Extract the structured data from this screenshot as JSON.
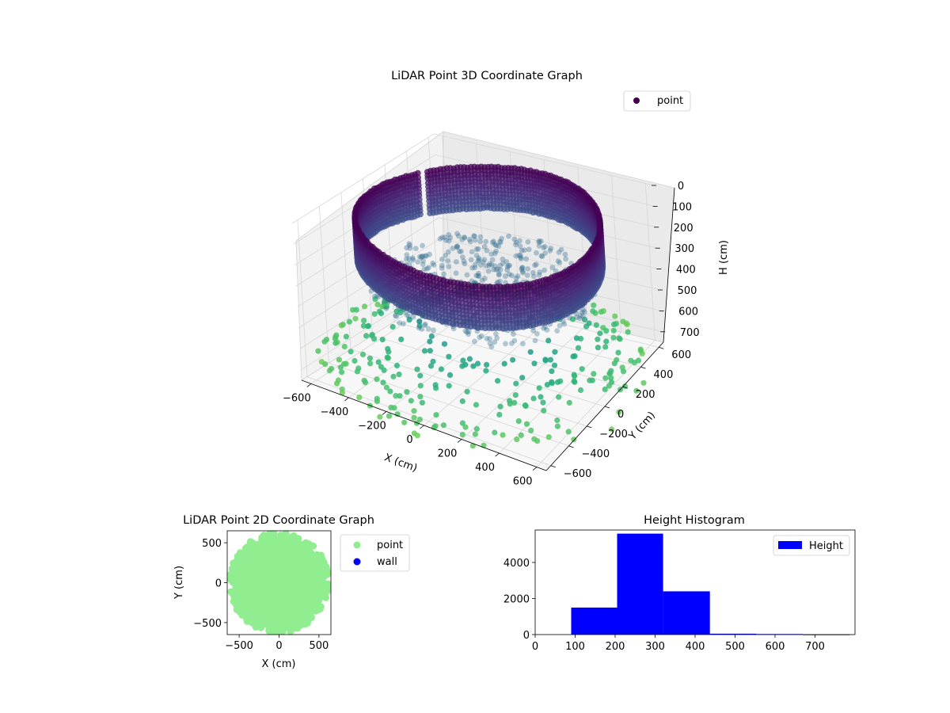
{
  "chart_data": [
    {
      "type": "scatter",
      "title": "LiDAR Point 3D Coordinate Graph",
      "projection": "3d",
      "xlabel": "X (cm)",
      "ylabel": "Y (cm)",
      "zlabel": "H (cm)",
      "xlim": [
        -650,
        650
      ],
      "ylim": [
        -650,
        650
      ],
      "zlim": [
        0,
        750
      ],
      "z_inverted": true,
      "x_ticks": [
        "-600",
        "-400",
        "-200",
        "0",
        "200",
        "400",
        "600"
      ],
      "y_ticks": [
        "-600",
        "-400",
        "-200",
        "0",
        "200",
        "400",
        "600"
      ],
      "z_ticks": [
        "0",
        "100",
        "200",
        "300",
        "400",
        "500",
        "600",
        "700"
      ],
      "grid": true,
      "colormap": "viridis",
      "legend": {
        "placement": "top-right",
        "entries": [
          {
            "label": "point",
            "color": "#440154"
          }
        ]
      },
      "series": [
        {
          "name": "point",
          "wall_radius": 600,
          "wall_height_range": [
            50,
            250
          ],
          "floor_height": 350,
          "scatter_height_range": [
            400,
            750
          ]
        }
      ]
    },
    {
      "type": "scatter",
      "title": "LiDAR Point 2D Coordinate Graph",
      "xlabel": "X (cm)",
      "ylabel": "Y (cm)",
      "xlim": [
        -650,
        650
      ],
      "ylim": [
        -650,
        650
      ],
      "x_ticks": [
        "−500",
        "0",
        "500"
      ],
      "y_ticks": [
        "500",
        "0",
        "−500"
      ],
      "legend": {
        "placement": "outside-right",
        "entries": [
          {
            "label": "point",
            "color": "#90ee90"
          },
          {
            "label": "wall",
            "color": "#0000ff"
          }
        ]
      },
      "series": [
        {
          "name": "point",
          "color": "#90ee90",
          "shape": "disk",
          "radius": 590
        },
        {
          "name": "wall",
          "color": "#0000ff",
          "values": []
        }
      ]
    },
    {
      "type": "bar",
      "title": "Height Histogram",
      "xlim": [
        0,
        800
      ],
      "ylim": [
        0,
        5800
      ],
      "x_ticks": [
        "0",
        "100",
        "200",
        "300",
        "400",
        "500",
        "600",
        "700"
      ],
      "y_ticks": [
        "0",
        "2000",
        "4000"
      ],
      "legend": {
        "placement": "top-right",
        "entries": [
          {
            "label": "Height",
            "color": "#0000ff"
          }
        ]
      },
      "bins": [
        {
          "start": 90,
          "end": 205,
          "count": 1500
        },
        {
          "start": 205,
          "end": 320,
          "count": 5600
        },
        {
          "start": 320,
          "end": 437,
          "count": 2400
        },
        {
          "start": 437,
          "end": 553,
          "count": 50
        },
        {
          "start": 553,
          "end": 670,
          "count": 30
        },
        {
          "start": 670,
          "end": 787,
          "count": 5
        }
      ],
      "bar_color": "#0000ff"
    }
  ]
}
